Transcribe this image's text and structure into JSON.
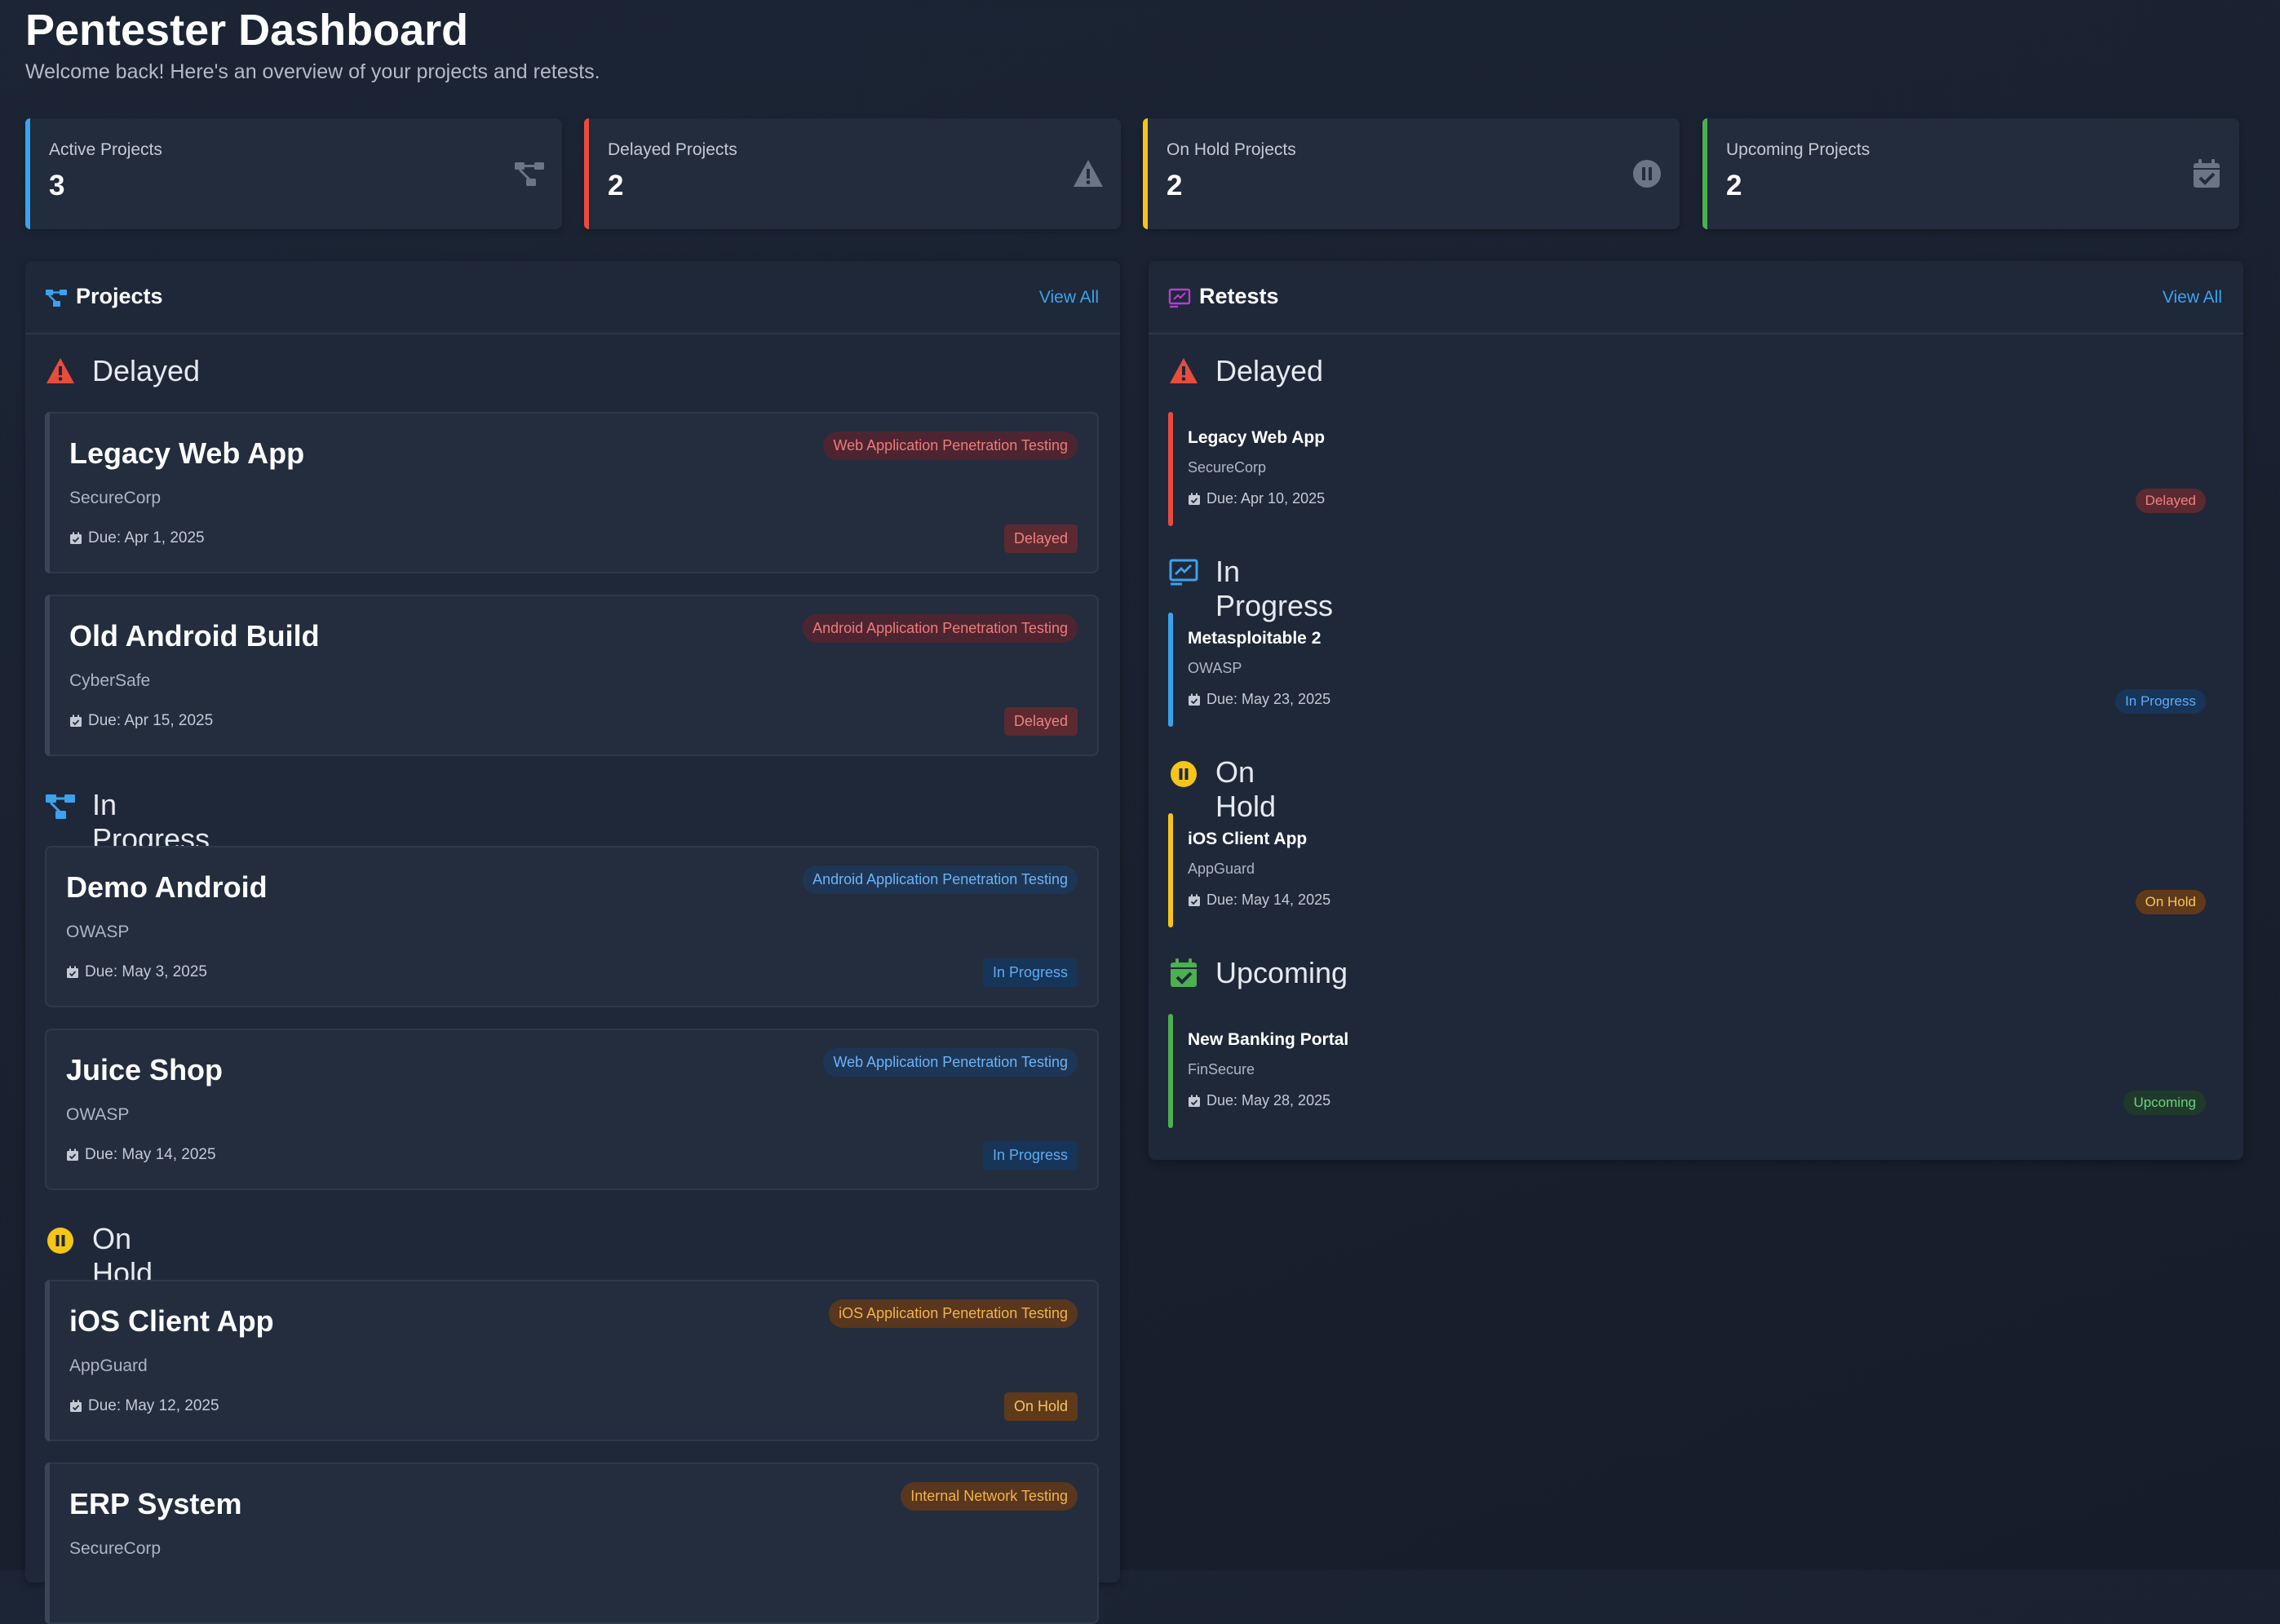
{
  "header": {
    "title": "Pentester Dashboard",
    "subtitle": "Welcome back! Here's an overview of your projects and retests."
  },
  "stats": [
    {
      "label": "Active Projects",
      "value": "3",
      "color": "#3ba2ef",
      "icon": "project-diagram-icon"
    },
    {
      "label": "Delayed Projects",
      "value": "2",
      "color": "#e74c3c",
      "icon": "warning-icon"
    },
    {
      "label": "On Hold Projects",
      "value": "2",
      "color": "#f5c518",
      "icon": "pause-circle-icon"
    },
    {
      "label": "Upcoming Projects",
      "value": "2",
      "color": "#4caf50",
      "icon": "calendar-check-icon"
    }
  ],
  "projects": {
    "title": "Projects",
    "view_all": "View All",
    "sections": {
      "delayed": "Delayed",
      "in_progress": "In Progress",
      "on_hold": "On Hold"
    },
    "cards": [
      {
        "name": "Legacy Web App",
        "client": "SecureCorp",
        "due": "Due: Apr 1, 2025",
        "type": "Web Application Penetration Testing",
        "status": "Delayed"
      },
      {
        "name": "Old Android Build",
        "client": "CyberSafe",
        "due": "Due: Apr 15, 2025",
        "type": "Android Application Penetration Testing",
        "status": "Delayed"
      },
      {
        "name": "Demo Android",
        "client": "OWASP",
        "due": "Due: May 3, 2025",
        "type": "Android Application Penetration Testing",
        "status": "In Progress"
      },
      {
        "name": "Juice Shop",
        "client": "OWASP",
        "due": "Due: May 14, 2025",
        "type": "Web Application Penetration Testing",
        "status": "In Progress"
      },
      {
        "name": "iOS Client App",
        "client": "AppGuard",
        "due": "Due: May 12, 2025",
        "type": "iOS Application Penetration Testing",
        "status": "On Hold"
      },
      {
        "name": "ERP System",
        "client": "SecureCorp",
        "due": "",
        "type": "Internal Network Testing",
        "status": ""
      }
    ]
  },
  "retests": {
    "title": "Retests",
    "view_all": "View All",
    "sections": {
      "delayed": "Delayed",
      "in_progress": "In Progress",
      "on_hold": "On Hold",
      "upcoming": "Upcoming"
    },
    "items": [
      {
        "name": "Legacy Web App",
        "client": "SecureCorp",
        "due": "Due: Apr 10, 2025",
        "status": "Delayed"
      },
      {
        "name": "Metasploitable 2",
        "client": "OWASP",
        "due": "Due: May 23, 2025",
        "status": "In Progress"
      },
      {
        "name": "iOS Client App",
        "client": "AppGuard",
        "due": "Due: May 14, 2025",
        "status": "On Hold"
      },
      {
        "name": "New Banking Portal",
        "client": "FinSecure",
        "due": "Due: May 28, 2025",
        "status": "Upcoming"
      }
    ]
  }
}
